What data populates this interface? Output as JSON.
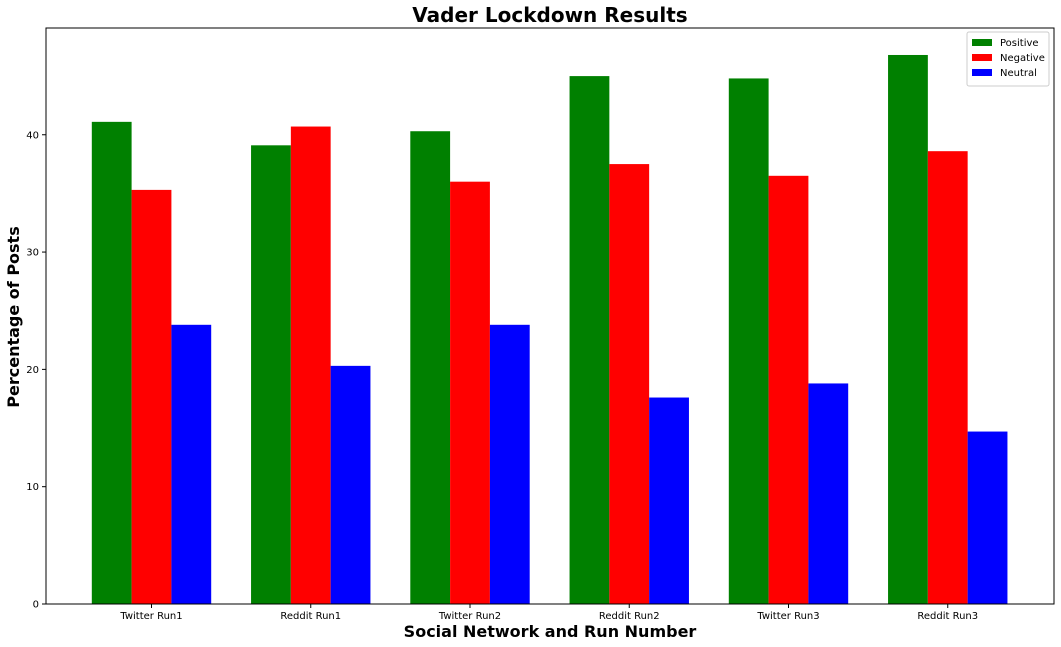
{
  "chart_data": {
    "type": "bar",
    "title": "Vader Lockdown Results",
    "xlabel": "Social Network and Run Number",
    "ylabel": "Percentage of Posts",
    "categories": [
      "Twitter Run1",
      "Reddit Run1",
      "Twitter Run2",
      "Reddit Run2",
      "Twitter Run3",
      "Reddit Run3"
    ],
    "series": [
      {
        "name": "Positive",
        "color": "#008000",
        "values": [
          41.1,
          39.1,
          40.3,
          45.0,
          44.8,
          46.8
        ]
      },
      {
        "name": "Negative",
        "color": "#ff0000",
        "values": [
          35.3,
          40.7,
          36.0,
          37.5,
          36.5,
          38.6
        ]
      },
      {
        "name": "Neutral",
        "color": "#0000ff",
        "values": [
          23.8,
          20.3,
          23.8,
          17.6,
          18.8,
          14.7
        ]
      }
    ],
    "ylim": [
      0,
      49.1
    ],
    "yticks": [
      0,
      10,
      20,
      30,
      40
    ],
    "legend_position": "top-right",
    "grid": false
  }
}
